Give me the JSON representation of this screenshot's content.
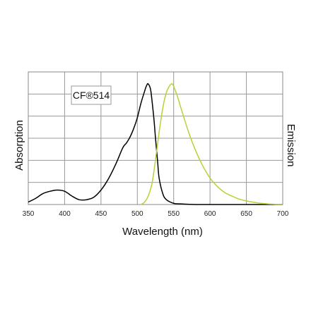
{
  "chart_data": {
    "type": "line",
    "title": "",
    "xlabel": "Wavelength  (nm)",
    "ylabel_left": "Absorption",
    "ylabel_right": "Emission",
    "xlim": [
      350,
      700
    ],
    "ylim": [
      0,
      1.0
    ],
    "x_ticks": [
      350,
      400,
      450,
      500,
      550,
      600,
      650,
      700
    ],
    "y_grid_lines": 6,
    "grid": true,
    "annotation": "CF®514",
    "series": [
      {
        "color": "#000000",
        "x": [
          350,
          360,
          370,
          380,
          390,
          400,
          410,
          420,
          430,
          440,
          450,
          460,
          470,
          480,
          485,
          490,
          495,
          500,
          505,
          510,
          513,
          515,
          518,
          520,
          523,
          525,
          528,
          530,
          535,
          540,
          550,
          560,
          580,
          600,
          650,
          700
        ],
        "y": [
          0.02,
          0.05,
          0.09,
          0.11,
          0.12,
          0.11,
          0.07,
          0.04,
          0.04,
          0.06,
          0.12,
          0.21,
          0.33,
          0.47,
          0.51,
          0.56,
          0.63,
          0.72,
          0.84,
          0.94,
          0.99,
          1.0,
          0.96,
          0.87,
          0.7,
          0.55,
          0.35,
          0.22,
          0.09,
          0.04,
          0.01,
          0.005,
          0.0,
          0.0,
          0.0,
          0.0
        ]
      },
      {
        "color": "#b5d334",
        "x": [
          505,
          510,
          515,
          520,
          525,
          530,
          535,
          540,
          545,
          548,
          550,
          555,
          560,
          570,
          580,
          590,
          600,
          610,
          620,
          630,
          640,
          650,
          660,
          670,
          680,
          690,
          700
        ],
        "y": [
          0.0,
          0.02,
          0.07,
          0.17,
          0.37,
          0.6,
          0.8,
          0.93,
          0.99,
          1.0,
          0.98,
          0.9,
          0.8,
          0.61,
          0.45,
          0.32,
          0.22,
          0.15,
          0.1,
          0.07,
          0.045,
          0.03,
          0.018,
          0.01,
          0.005,
          0.002,
          0.0
        ]
      }
    ]
  }
}
